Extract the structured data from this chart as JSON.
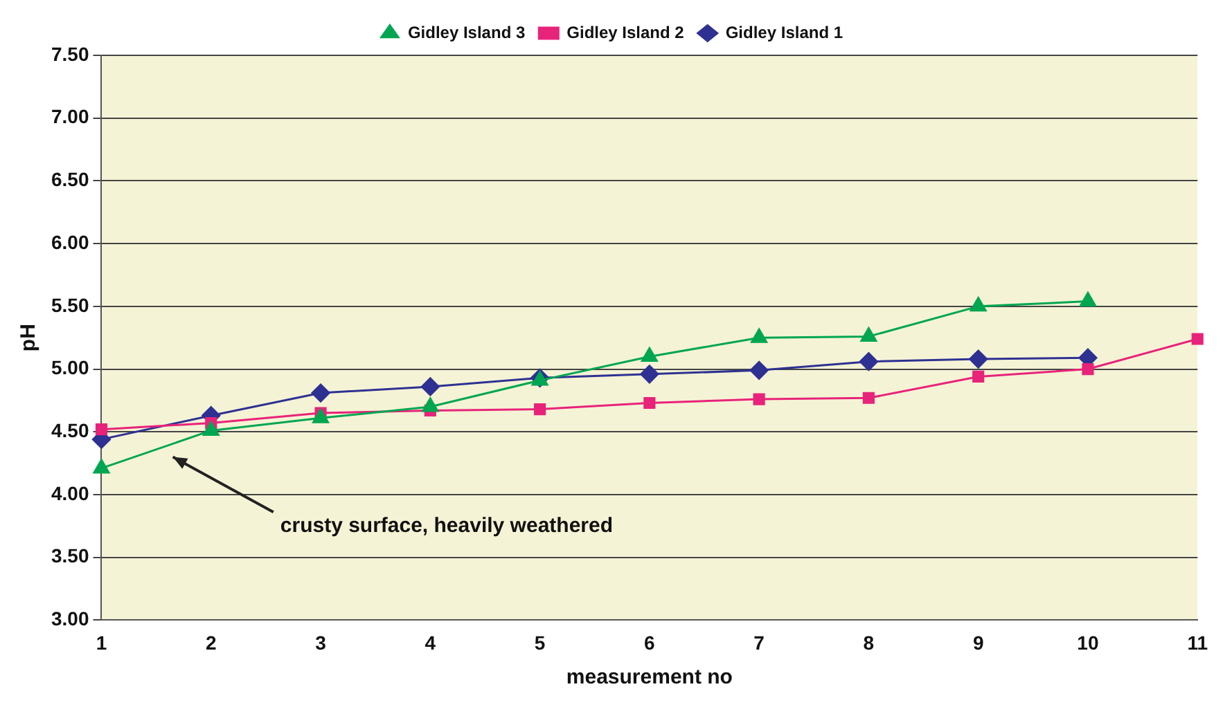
{
  "chart_data": {
    "type": "line",
    "xlabel": "measurement no",
    "ylabel": "pH",
    "categories": [
      "1",
      "2",
      "3",
      "4",
      "5",
      "6",
      "7",
      "8",
      "9",
      "10",
      "11"
    ],
    "series": [
      {
        "name": "Gidley Island 1",
        "color": "#2e3192",
        "marker": "diamond",
        "values": [
          4.44,
          4.63,
          4.81,
          4.86,
          4.93,
          4.96,
          4.99,
          5.06,
          5.08,
          5.09,
          null
        ]
      },
      {
        "name": "Gidley Island 2",
        "color": "#e8237a",
        "marker": "square",
        "values": [
          4.52,
          4.57,
          4.65,
          4.67,
          4.68,
          4.73,
          4.76,
          4.77,
          4.94,
          5.0,
          5.24
        ]
      },
      {
        "name": "Gidley Island 3",
        "color": "#00a651",
        "marker": "triangle",
        "values": [
          4.21,
          4.51,
          4.61,
          4.7,
          4.91,
          5.1,
          5.25,
          5.26,
          5.5,
          5.54,
          null
        ]
      }
    ],
    "ylim": [
      3,
      7.5
    ],
    "yticks": [
      {
        "value": 3,
        "label": "3.00"
      },
      {
        "value": 3.5,
        "label": "3.50"
      },
      {
        "value": 4,
        "label": "4.00"
      },
      {
        "value": 4.5,
        "label": "4.50"
      },
      {
        "value": 5,
        "label": "5.00"
      },
      {
        "value": 5.5,
        "label": "5.50"
      },
      {
        "value": 6,
        "label": "6.00"
      },
      {
        "value": 6.5,
        "label": "6.50"
      },
      {
        "value": 7,
        "label": "7.00"
      },
      {
        "value": 7.5,
        "label": "7.50"
      }
    ],
    "grid": "y",
    "legend": "top",
    "annotations": [
      "crusty surface, heavily weathered"
    ]
  }
}
